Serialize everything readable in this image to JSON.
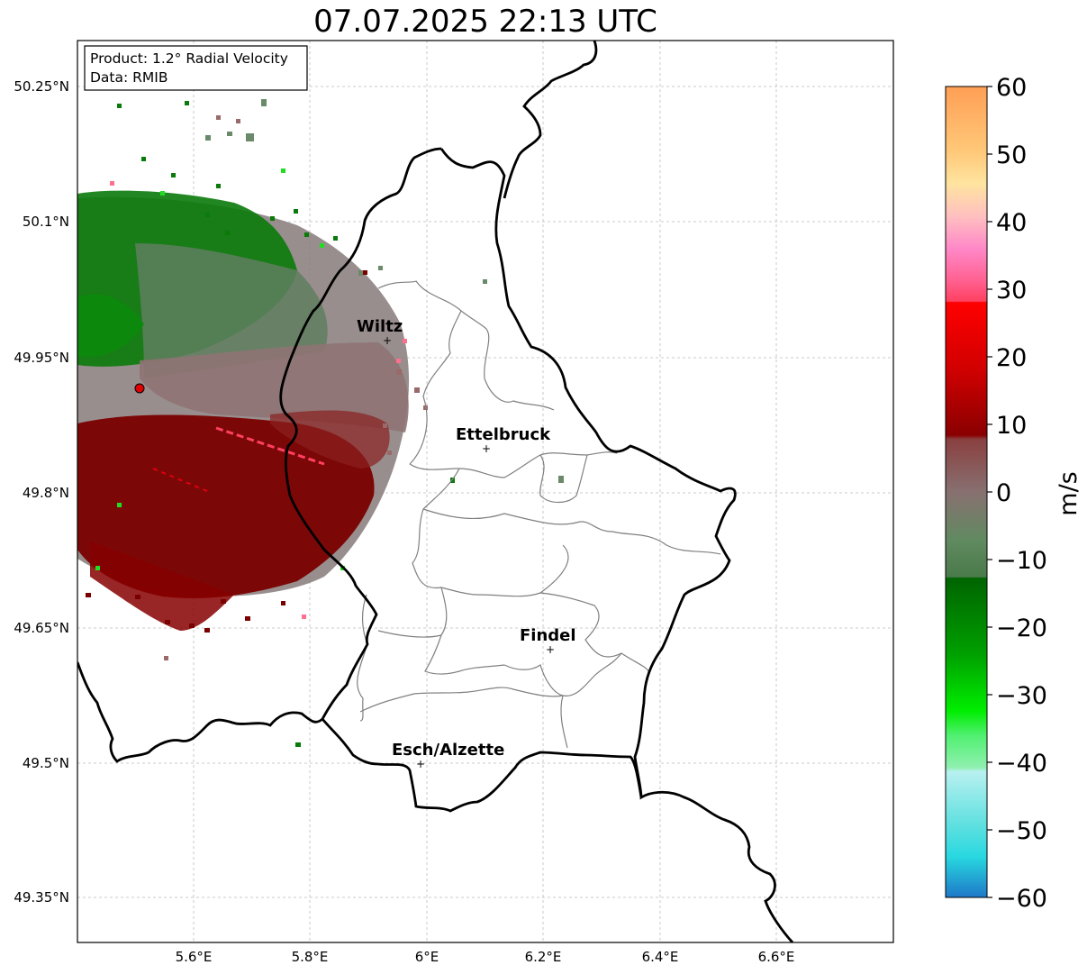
{
  "title": "07.07.2025 22:13 UTC",
  "info_box": {
    "product": "Product: 1.2° Radial Velocity",
    "data": "Data: RMIB"
  },
  "lat_labels": [
    "50.25°N",
    "50.1°N",
    "49.95°N",
    "49.8°N",
    "49.65°N",
    "49.5°N",
    "49.35°N"
  ],
  "lon_labels": [
    "5.6°E",
    "5.8°E",
    "6°E",
    "6.2°E",
    "6.4°E",
    "6.6°E"
  ],
  "cities": [
    {
      "name": "Wiltz"
    },
    {
      "name": "Ettelbruck"
    },
    {
      "name": "Findel"
    },
    {
      "name": "Esch/Alzette"
    }
  ],
  "colorbar": {
    "label": "m/s",
    "ticks": [
      "60",
      "50",
      "40",
      "30",
      "20",
      "10",
      "0",
      "−10",
      "−20",
      "−30",
      "−40",
      "−50",
      "−60"
    ],
    "min": -60,
    "max": 60
  },
  "colors": {
    "radar_site": "#e00000",
    "border": "#000000",
    "canton_lines": "#808080"
  }
}
